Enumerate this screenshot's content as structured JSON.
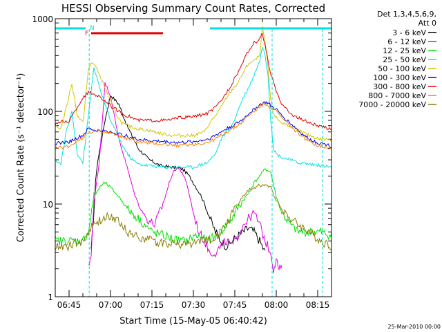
{
  "chart_data": {
    "type": "line",
    "title": "HESSI Observing Summary Count Rates, Corrected",
    "xlabel": "Start Time (15-May-05 06:40:42)",
    "ylabel": "Corrected Count Rate (s⁻¹ detector⁻¹)",
    "yscale": "log",
    "ylim": [
      1,
      1000
    ],
    "xlim_minutes_after_0640": [
      0,
      100
    ],
    "x_tick_labels": [
      "06:45",
      "07:00",
      "07:15",
      "07:30",
      "07:45",
      "08:00",
      "08:15"
    ],
    "y_tick_labels": [
      "1",
      "10",
      "100",
      "1000"
    ],
    "timestamp": "25-Mar-2010 00:00",
    "legend": {
      "header": [
        "Det 1,3,4,5,6,9,",
        "Att 0"
      ],
      "placement": "right"
    },
    "flags": [
      {
        "label": "N",
        "color": "#00e0e0",
        "segments": [
          [
            0,
            11
          ],
          [
            56,
            100
          ]
        ]
      },
      {
        "label": "F",
        "color": "#e00000",
        "segments": [
          [
            13,
            39
          ]
        ]
      }
    ],
    "night_marker_times": [
      12.3,
      78.5,
      96.7
    ],
    "series": [
      {
        "name": "3 - 6 keV",
        "color": "#000000",
        "x": [
          0,
          10,
          12,
          13,
          15,
          18,
          20,
          23,
          26,
          30,
          34,
          38,
          42,
          46,
          48,
          50,
          53,
          56,
          58,
          60,
          62,
          64,
          66,
          68,
          70,
          72,
          74,
          76,
          78,
          80
        ],
        "y": [
          null,
          null,
          null,
          3,
          25,
          80,
          150,
          120,
          70,
          40,
          30,
          26,
          25,
          24,
          21,
          17,
          12,
          7,
          5,
          4,
          3.5,
          4,
          4.5,
          5,
          5.5,
          5,
          4,
          3,
          null,
          null
        ]
      },
      {
        "name": "6 - 12 keV",
        "color": "#e000e0",
        "x": [
          10,
          12,
          13,
          14,
          16,
          18,
          20,
          22,
          24,
          26,
          28,
          30,
          33,
          36,
          39,
          42,
          44,
          46,
          48,
          50,
          52,
          54,
          56,
          58,
          60,
          62,
          64,
          66,
          68,
          70,
          72,
          74,
          76,
          78,
          79,
          80,
          81,
          82
        ],
        "y": [
          null,
          2,
          3,
          10,
          30,
          200,
          150,
          70,
          40,
          25,
          15,
          10,
          7,
          6,
          10,
          20,
          25,
          22,
          15,
          8,
          5,
          4,
          3,
          3,
          3.5,
          4,
          3.5,
          4.5,
          6,
          7,
          8,
          6,
          4,
          3,
          2,
          2.5,
          2,
          2
        ]
      },
      {
        "name": "12 - 25 keV",
        "color": "#00e000",
        "x": [
          0,
          5,
          10,
          12,
          14,
          16,
          18,
          20,
          22,
          24,
          26,
          30,
          35,
          40,
          45,
          48,
          50,
          52,
          55,
          58,
          60,
          62,
          64,
          66,
          68,
          70,
          72,
          74,
          76,
          78,
          80,
          82,
          85,
          88,
          92,
          96,
          100
        ],
        "y": [
          4,
          4,
          4,
          5,
          12,
          15,
          17,
          15,
          13,
          11,
          9,
          7,
          5,
          4.5,
          4,
          4,
          4.5,
          4.5,
          4,
          4.5,
          5,
          6,
          7,
          9,
          11,
          13,
          17,
          20,
          24,
          22,
          12,
          8,
          6,
          5,
          5,
          5,
          4.5
        ]
      },
      {
        "name": "25 - 50 keV",
        "color": "#00e0e0",
        "x": [
          0,
          2,
          4,
          6,
          8,
          10,
          12,
          14,
          16,
          18,
          20,
          22,
          24,
          26,
          28,
          30,
          34,
          40,
          45,
          50,
          55,
          58,
          60,
          62,
          64,
          66,
          68,
          70,
          72,
          74,
          75,
          76,
          77,
          78,
          79,
          80,
          82,
          85,
          88,
          92,
          96,
          100
        ],
        "y": [
          30,
          27,
          60,
          100,
          35,
          28,
          90,
          300,
          180,
          120,
          80,
          60,
          45,
          35,
          30,
          27,
          26,
          25,
          25,
          25,
          28,
          35,
          50,
          60,
          70,
          100,
          140,
          180,
          250,
          350,
          500,
          400,
          250,
          80,
          40,
          35,
          32,
          30,
          28,
          27,
          26,
          25
        ]
      },
      {
        "name": "50 - 100 keV",
        "color": "#d4c600",
        "x": [
          0,
          2,
          4,
          6,
          8,
          10,
          12,
          13,
          14,
          16,
          18,
          20,
          22,
          24,
          26,
          30,
          34,
          38,
          42,
          46,
          50,
          54,
          56,
          58,
          60,
          62,
          64,
          66,
          68,
          70,
          72,
          74,
          75,
          76,
          77,
          78,
          79,
          80,
          82,
          85,
          88,
          92,
          96,
          100
        ],
        "y": [
          70,
          65,
          110,
          200,
          90,
          75,
          280,
          330,
          330,
          250,
          180,
          130,
          95,
          75,
          70,
          65,
          62,
          58,
          55,
          55,
          55,
          60,
          75,
          90,
          110,
          140,
          170,
          200,
          260,
          330,
          350,
          400,
          800,
          550,
          300,
          130,
          95,
          85,
          75,
          70,
          62,
          55,
          50,
          50
        ]
      },
      {
        "name": "100 - 300 keV",
        "color": "#0000e0",
        "x": [
          0,
          5,
          10,
          12,
          15,
          20,
          25,
          30,
          35,
          40,
          45,
          50,
          55,
          58,
          60,
          62,
          65,
          68,
          70,
          72,
          74,
          76,
          77,
          78,
          80,
          82,
          85,
          88,
          90,
          92,
          95,
          98,
          100
        ],
        "y": [
          45,
          47,
          55,
          65,
          62,
          60,
          55,
          50,
          48,
          47,
          46,
          47,
          50,
          55,
          60,
          65,
          72,
          82,
          95,
          105,
          118,
          125,
          122,
          115,
          105,
          90,
          75,
          62,
          55,
          50,
          46,
          44,
          42
        ]
      },
      {
        "name": "300 - 800 keV",
        "color": "#e00000",
        "x": [
          0,
          5,
          10,
          12,
          15,
          18,
          20,
          22,
          24,
          26,
          28,
          30,
          35,
          40,
          45,
          50,
          55,
          58,
          60,
          62,
          64,
          66,
          68,
          70,
          72,
          74,
          75,
          76,
          77,
          78,
          80,
          82,
          85,
          88,
          92,
          96,
          100
        ],
        "y": [
          75,
          78,
          140,
          160,
          150,
          130,
          115,
          105,
          95,
          90,
          85,
          80,
          80,
          80,
          85,
          88,
          95,
          110,
          130,
          160,
          200,
          260,
          340,
          450,
          550,
          600,
          700,
          500,
          350,
          250,
          170,
          120,
          95,
          85,
          75,
          68,
          65
        ]
      },
      {
        "name": "800 - 7000 keV",
        "color": "#ff8000",
        "x": [
          0,
          5,
          10,
          12,
          15,
          20,
          25,
          30,
          35,
          40,
          45,
          50,
          55,
          58,
          60,
          62,
          65,
          68,
          70,
          72,
          74,
          76,
          77,
          78,
          80,
          82,
          85,
          88,
          90,
          92,
          95,
          98,
          100
        ],
        "y": [
          40,
          42,
          52,
          60,
          60,
          58,
          52,
          47,
          45,
          44,
          43,
          44,
          46,
          50,
          55,
          60,
          67,
          78,
          90,
          100,
          112,
          120,
          118,
          110,
          100,
          85,
          70,
          58,
          52,
          47,
          43,
          41,
          40
        ]
      },
      {
        "name": "7000 - 20000 keV",
        "color": "#8a7a00",
        "x": [
          0,
          5,
          10,
          12,
          14,
          16,
          18,
          20,
          22,
          24,
          26,
          30,
          35,
          40,
          45,
          48,
          50,
          52,
          55,
          58,
          60,
          62,
          64,
          66,
          68,
          70,
          72,
          74,
          76,
          78,
          80,
          82,
          85,
          88,
          92,
          96,
          100
        ],
        "y": [
          3.5,
          3.5,
          4,
          5,
          6,
          6.5,
          7,
          7.5,
          7,
          6,
          5,
          4.5,
          4,
          3.8,
          3.7,
          3.7,
          3.8,
          4,
          4,
          4.5,
          5,
          6,
          8,
          10,
          12,
          14,
          15,
          16,
          16,
          15,
          11,
          9,
          7,
          6,
          5,
          4,
          3.5
        ]
      }
    ]
  }
}
